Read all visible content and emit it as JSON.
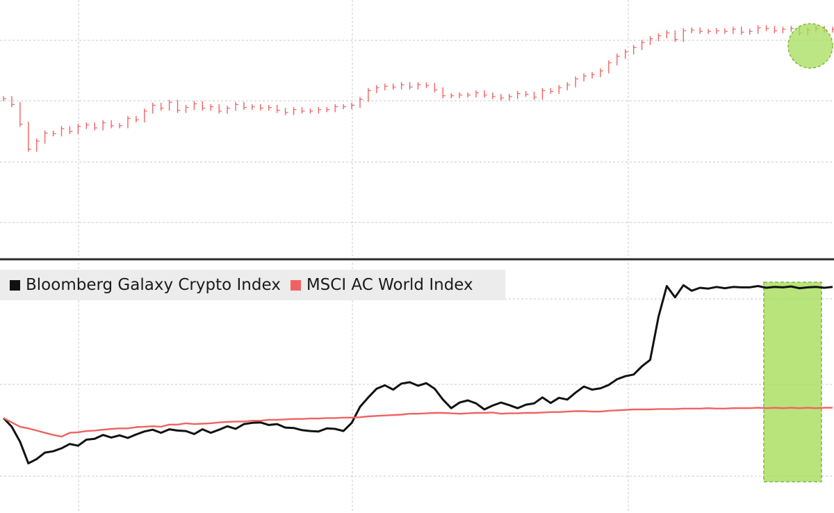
{
  "colors": {
    "background": "#ffffff",
    "grid": "#c8c8c8",
    "divider": "#2b2b2b",
    "crypto": "#111111",
    "msci": "#f06262",
    "highlight_fill": "#a6dd5a",
    "highlight_stroke": "#7fb83a",
    "legend_bg": "#ececec"
  },
  "legend": {
    "items": [
      {
        "label": "Bloomberg Galaxy Crypto Index",
        "color": "#111111"
      },
      {
        "label": "MSCI AC World Index",
        "color": "#f06262"
      }
    ]
  },
  "chart_data": [
    {
      "type": "line",
      "panel": "top",
      "style": "ohlc-bars",
      "title": "",
      "xlabel": "",
      "ylabel": "",
      "grid": true,
      "x": [
        0,
        3,
        6,
        9,
        12,
        15,
        18,
        21,
        24,
        27,
        30,
        33,
        36,
        39,
        42,
        45,
        48,
        51,
        54,
        57,
        60,
        63,
        66,
        69,
        72,
        75,
        78,
        81,
        84,
        87,
        90,
        93,
        96,
        99,
        102,
        105,
        108,
        111,
        114,
        117,
        120,
        123,
        126,
        129,
        132,
        135,
        138,
        141,
        144,
        147,
        150,
        153,
        156,
        159,
        162,
        165,
        168,
        171,
        174,
        177,
        180,
        183,
        186,
        189,
        192,
        195,
        198,
        201,
        204,
        207,
        210,
        213,
        216,
        219,
        222,
        225,
        228,
        231,
        234,
        237,
        240,
        243,
        246,
        249,
        252,
        255,
        258,
        261,
        264,
        267,
        270,
        273,
        276,
        279,
        282,
        285,
        288,
        291,
        294,
        297,
        300
      ],
      "series": [
        {
          "name": "MSCI AC World Index",
          "values": [
            100.0,
            99.2,
            96.5,
            93.1,
            94.2,
            95.3,
            95.2,
            95.9,
            95.5,
            96.2,
            96.4,
            96.0,
            96.7,
            96.3,
            96.3,
            97.3,
            97.1,
            98.3,
            99.1,
            98.7,
            99.5,
            98.4,
            98.8,
            99.3,
            98.7,
            98.9,
            98.3,
            98.7,
            99.2,
            98.8,
            98.9,
            98.7,
            98.8,
            98.4,
            98.1,
            98.5,
            98.3,
            98.3,
            98.5,
            98.5,
            98.9,
            98.9,
            99.1,
            99.9,
            101.1,
            101.5,
            101.7,
            101.6,
            101.9,
            101.6,
            101.9,
            101.8,
            101.2,
            100.4,
            100.4,
            100.5,
            100.5,
            100.8,
            100.5,
            100.3,
            100.1,
            100.3,
            100.7,
            100.6,
            100.2,
            101.1,
            101.0,
            101.5,
            101.9,
            102.7,
            103.1,
            103.3,
            103.8,
            104.9,
            105.8,
            106.4,
            107.0,
            107.7,
            108.2,
            108.6,
            109.0,
            108.1,
            109.3,
            109.4,
            109.2,
            109.2,
            109.3,
            109.2,
            109.5,
            109.1,
            109.2,
            109.7,
            109.6,
            109.3,
            109.5,
            109.6,
            109.0,
            109.4,
            109.6,
            109.4,
            109.5
          ]
        }
      ]
    },
    {
      "type": "line",
      "panel": "bottom",
      "title": "",
      "xlabel": "",
      "ylabel": "",
      "grid": true,
      "x": [
        0,
        3,
        6,
        9,
        12,
        15,
        18,
        21,
        24,
        27,
        30,
        33,
        36,
        39,
        42,
        45,
        48,
        51,
        54,
        57,
        60,
        63,
        66,
        69,
        72,
        75,
        78,
        81,
        84,
        87,
        90,
        93,
        96,
        99,
        102,
        105,
        108,
        111,
        114,
        117,
        120,
        123,
        126,
        129,
        132,
        135,
        138,
        141,
        144,
        147,
        150,
        153,
        156,
        159,
        162,
        165,
        168,
        171,
        174,
        177,
        180,
        183,
        186,
        189,
        192,
        195,
        198,
        201,
        204,
        207,
        210,
        213,
        216,
        219,
        222,
        225,
        228,
        231,
        234,
        237,
        240,
        243,
        246,
        249,
        252,
        255,
        258,
        261,
        264,
        267,
        270,
        273,
        276,
        279,
        282,
        285,
        288,
        291,
        294,
        297,
        300
      ],
      "series": [
        {
          "name": "Bloomberg Galaxy Crypto Index",
          "values": [
            100.0,
            98.0,
            94.5,
            89.5,
            90.5,
            92.0,
            92.3,
            93.0,
            94.0,
            93.6,
            95.0,
            95.2,
            96.1,
            95.5,
            96.0,
            95.4,
            96.2,
            96.9,
            97.3,
            96.6,
            97.4,
            97.1,
            97.0,
            96.3,
            97.4,
            96.6,
            97.3,
            98.1,
            97.5,
            98.6,
            98.9,
            99.0,
            98.4,
            98.6,
            97.8,
            97.7,
            97.2,
            97.0,
            96.9,
            97.6,
            97.5,
            97.0,
            98.9,
            102.6,
            104.8,
            106.8,
            107.6,
            106.6,
            108.0,
            108.3,
            107.5,
            108.1,
            106.8,
            104.3,
            102.3,
            103.6,
            104.1,
            103.4,
            102.0,
            102.9,
            103.6,
            103.0,
            102.3,
            103.1,
            103.4,
            104.8,
            103.5,
            104.7,
            104.3,
            105.9,
            107.3,
            106.6,
            106.9,
            107.7,
            109.0,
            109.7,
            110.1,
            112.0,
            113.5,
            123.5,
            130.6,
            128.0,
            130.8,
            129.5,
            130.2,
            130.0,
            130.4,
            130.1,
            130.4,
            130.3,
            130.3,
            130.6,
            130.2,
            130.4,
            130.3,
            130.5,
            130.1,
            130.3,
            130.4,
            130.2,
            130.4
          ],
          "color": "#111111"
        },
        {
          "name": "MSCI AC World Index",
          "values": [
            100.0,
            99.0,
            98.0,
            97.6,
            97.1,
            96.6,
            96.1,
            95.7,
            96.6,
            96.7,
            97.0,
            97.1,
            97.3,
            97.5,
            97.6,
            97.6,
            97.9,
            98.0,
            98.1,
            98.0,
            98.5,
            98.5,
            98.8,
            98.6,
            98.7,
            98.8,
            99.0,
            99.1,
            99.2,
            99.2,
            99.4,
            99.4,
            99.6,
            99.6,
            99.7,
            99.8,
            99.8,
            99.9,
            99.9,
            100.0,
            100.0,
            100.1,
            100.1,
            100.2,
            100.4,
            100.5,
            100.6,
            100.7,
            100.8,
            101.0,
            101.0,
            101.1,
            101.2,
            101.2,
            101.1,
            101.0,
            101.1,
            101.2,
            101.2,
            101.3,
            101.0,
            101.1,
            101.1,
            101.2,
            101.2,
            101.3,
            101.4,
            101.4,
            101.5,
            101.6,
            101.6,
            101.5,
            101.5,
            101.7,
            101.8,
            101.9,
            102.0,
            102.0,
            102.0,
            102.1,
            102.1,
            102.1,
            102.2,
            102.2,
            102.2,
            102.3,
            102.2,
            102.2,
            102.3,
            102.3,
            102.3,
            102.4,
            102.3,
            102.4,
            102.3,
            102.4,
            102.3,
            102.4,
            102.3,
            102.4,
            102.4
          ],
          "color": "#f06262"
        }
      ]
    }
  ]
}
